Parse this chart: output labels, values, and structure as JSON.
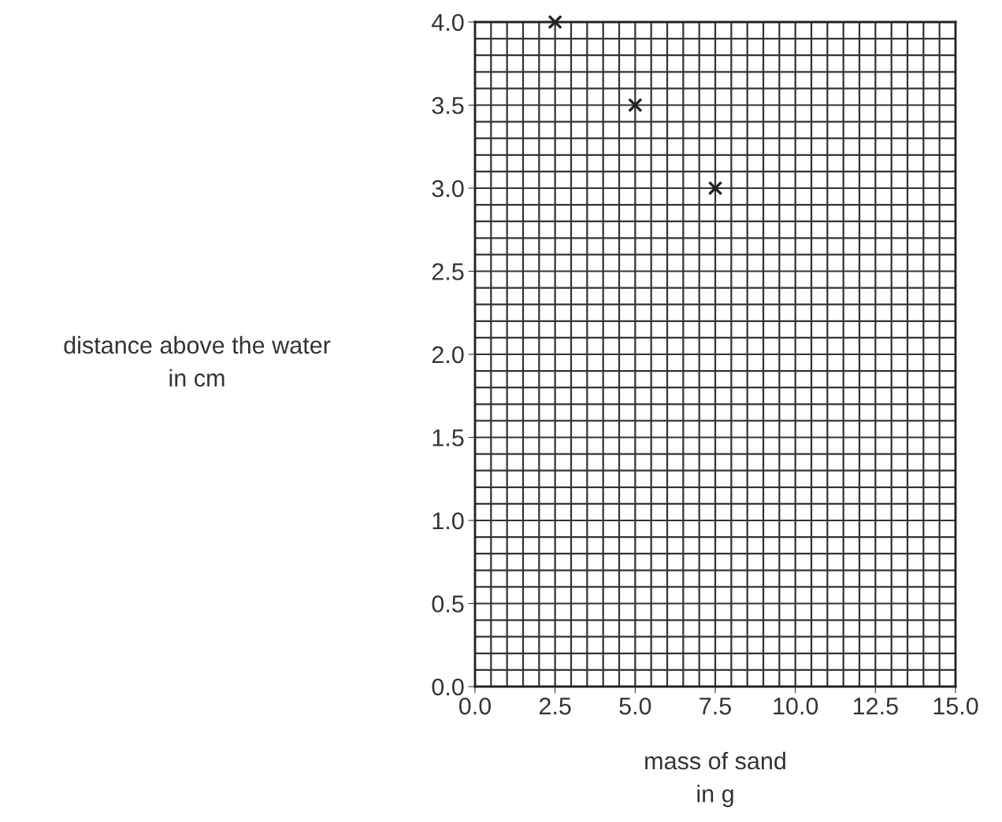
{
  "chart_data": {
    "type": "scatter",
    "xlabel": "mass of sand\nin g",
    "ylabel": "distance above the water\nin cm",
    "x": [
      2.5,
      5.0,
      7.5
    ],
    "values": [
      4.0,
      3.5,
      3.0
    ],
    "color": "#222222",
    "marker": "cross",
    "xlim": [
      0,
      15
    ],
    "xticks": [
      {
        "value": 0,
        "label": "0.0"
      },
      {
        "value": 2.5,
        "label": "2.5"
      },
      {
        "value": 5,
        "label": "5.0"
      },
      {
        "value": 7.5,
        "label": "7.5"
      },
      {
        "value": 10,
        "label": "10.0"
      },
      {
        "value": 12.5,
        "label": "12.5"
      },
      {
        "value": 15,
        "label": "15.0"
      }
    ],
    "ylim": [
      0,
      4
    ],
    "yticks": [
      {
        "value": 0,
        "label": "0.0"
      },
      {
        "value": 0.5,
        "label": "0.5"
      },
      {
        "value": 1,
        "label": "1.0"
      },
      {
        "value": 1.5,
        "label": "1.5"
      },
      {
        "value": 2,
        "label": "2.0"
      },
      {
        "value": 2.5,
        "label": "2.5"
      },
      {
        "value": 3,
        "label": "3.0"
      },
      {
        "value": 3.5,
        "label": "3.5"
      },
      {
        "value": 4,
        "label": "4.0"
      }
    ],
    "grid": true
  }
}
